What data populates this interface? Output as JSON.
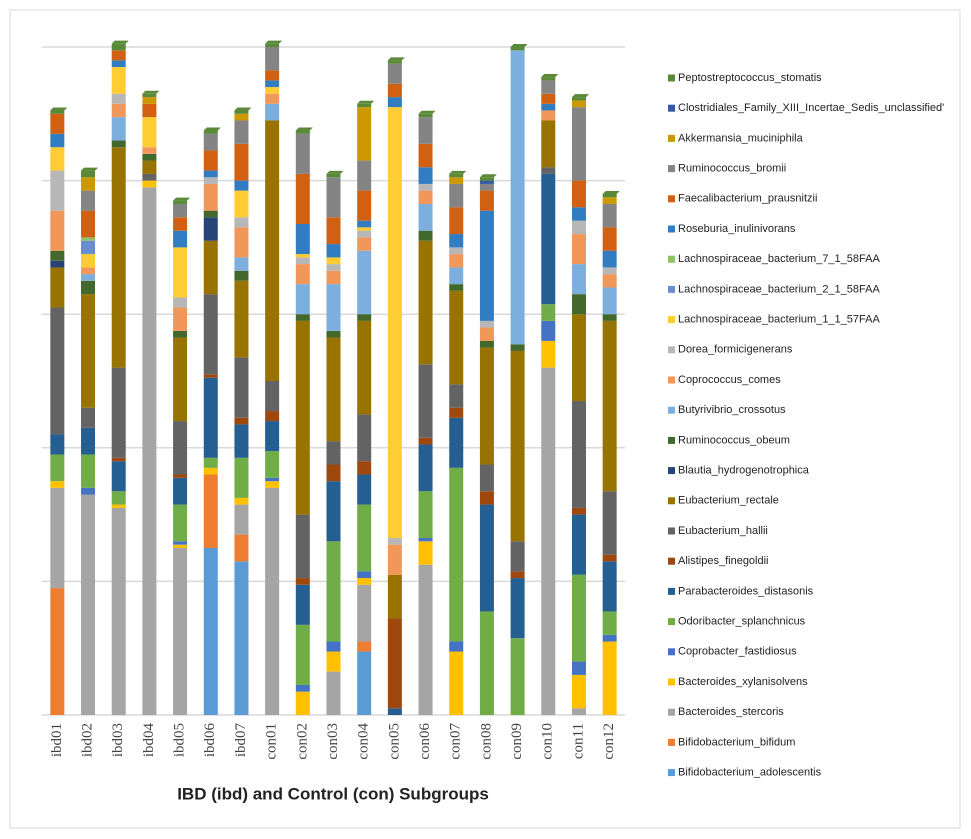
{
  "chart_data": {
    "type": "stacked_bar",
    "x_label": "IBD (ibd) and Control (con) Subgroups",
    "categories": [
      "ibd01",
      "ibd02",
      "ibd03",
      "ibd04",
      "ibd05",
      "ibd06",
      "ibd07",
      "con01",
      "con02",
      "con03",
      "con04",
      "con05",
      "con06",
      "con07",
      "con08",
      "con09",
      "con10",
      "con11",
      "con12"
    ],
    "ylim": [
      0,
      100
    ],
    "yticks": [
      0,
      20,
      40,
      60,
      80,
      100
    ],
    "grid": true,
    "legend": "right",
    "series": [
      {
        "name": "Bifidobacterium_adolescentis",
        "color": "#5b9bd5",
        "values": [
          0,
          0,
          0,
          0,
          0,
          25,
          23,
          0,
          0,
          0,
          9.5,
          0,
          0,
          0,
          0,
          0,
          0,
          0,
          0
        ]
      },
      {
        "name": "Bifidobacterium_bifidum",
        "color": "#ed7d31",
        "values": [
          19,
          0,
          0,
          0,
          0,
          11,
          4,
          0,
          0,
          0,
          1.5,
          0,
          0,
          0,
          0,
          0,
          0,
          0,
          0
        ]
      },
      {
        "name": "Bacteroides_stercoris",
        "color": "#a5a5a5",
        "values": [
          15,
          33,
          31,
          79,
          25,
          0,
          4.5,
          34,
          0,
          6.5,
          8.5,
          0,
          22.5,
          0,
          0,
          0,
          52,
          1,
          0
        ]
      },
      {
        "name": "Bacteroides_xylanisolvens",
        "color": "#ffc000",
        "values": [
          1,
          0,
          0.5,
          1,
          0.5,
          1,
          1,
          1,
          3.5,
          3,
          1,
          0,
          3.5,
          9.5,
          0,
          0,
          4,
          5,
          11
        ]
      },
      {
        "name": "Coprobacter_fastidiosus",
        "color": "#4472c4",
        "values": [
          0,
          1,
          0,
          0,
          0.5,
          0,
          0,
          0.5,
          1,
          1.5,
          1,
          0,
          0.5,
          1.5,
          0,
          0,
          3,
          2,
          1
        ]
      },
      {
        "name": "Odoribacter_splanchnicus",
        "color": "#70ad47",
        "values": [
          4,
          5,
          2,
          0,
          5.5,
          1.5,
          6,
          4,
          9,
          15,
          10,
          0,
          7,
          26,
          15.5,
          11.5,
          2.5,
          13,
          3.5
        ]
      },
      {
        "name": "Parabacteroides_distasonis",
        "color": "#255e91",
        "values": [
          3,
          4,
          4.5,
          0,
          4,
          12,
          5,
          4.5,
          6,
          9,
          4.5,
          1,
          7,
          7.5,
          16,
          9,
          19.5,
          9,
          7.5
        ]
      },
      {
        "name": "Alistipes_finegoldii",
        "color": "#9e480e",
        "values": [
          0,
          0,
          0.5,
          0,
          0.5,
          0.5,
          1,
          1.5,
          1,
          2.5,
          2,
          13.5,
          1,
          1.5,
          2,
          1,
          0,
          1,
          1
        ]
      },
      {
        "name": "Eubacterium_hallii",
        "color": "#636363",
        "values": [
          19,
          3,
          13.5,
          1,
          8,
          12,
          9,
          4.5,
          9.5,
          3.5,
          7,
          0,
          11,
          3.5,
          4,
          4.5,
          1,
          16,
          9.5
        ]
      },
      {
        "name": "Eubacterium_rectale",
        "color": "#997300",
        "values": [
          6,
          17,
          33,
          2,
          12.5,
          8,
          11.5,
          39,
          29,
          15.5,
          14,
          6.5,
          18.5,
          14,
          17.5,
          28.5,
          7,
          13,
          25.5
        ]
      },
      {
        "name": "Blautia_hydrogenotrophica",
        "color": "#264478",
        "values": [
          1,
          0,
          0,
          0,
          0,
          3.5,
          0,
          0,
          0,
          0,
          0,
          0,
          0,
          0,
          0,
          0,
          0,
          0,
          0
        ]
      },
      {
        "name": "Ruminococcus_obeum",
        "color": "#43682b",
        "values": [
          1.5,
          2,
          1,
          1,
          1,
          1,
          1.5,
          0,
          1,
          1,
          1,
          0,
          1.5,
          1,
          1,
          1,
          0,
          3,
          1
        ]
      },
      {
        "name": "Butyrivibrio_crossotus",
        "color": "#7cafdd",
        "values": [
          0,
          1,
          3.5,
          0,
          0,
          0,
          2,
          2.5,
          4.5,
          7,
          9.5,
          0,
          4,
          2.5,
          0,
          44,
          0,
          4.5,
          4
        ]
      },
      {
        "name": "Coprococcus_comes",
        "color": "#f1975a",
        "values": [
          6,
          1,
          2,
          1,
          3.5,
          4,
          4.5,
          1.5,
          3,
          2,
          2,
          4.5,
          2,
          2,
          2,
          0,
          1.5,
          4.5,
          2
        ]
      },
      {
        "name": "Dorea_formicigenerans",
        "color": "#b7b7b7",
        "values": [
          6,
          0,
          1.5,
          0,
          1.5,
          1,
          1.5,
          0,
          1,
          1,
          1,
          1,
          1,
          1,
          1,
          0,
          0,
          2,
          1
        ]
      },
      {
        "name": "Lachnospiraceae_bacterium_1_1_57FAA",
        "color": "#ffcd33",
        "values": [
          3.5,
          2,
          4,
          4.5,
          7.5,
          0,
          4,
          1,
          0.5,
          1,
          0.5,
          64.5,
          0,
          0,
          0,
          0,
          0,
          0,
          0
        ]
      },
      {
        "name": "Lachnospiraceae_bacterium_2_1_58FAA",
        "color": "#698ed0",
        "values": [
          0,
          2,
          0,
          0,
          0,
          0,
          0,
          0,
          0,
          0,
          0,
          0,
          0,
          0,
          0,
          0,
          0,
          0,
          0
        ]
      },
      {
        "name": "Lachnospiraceae_bacterium_7_1_58FAA",
        "color": "#8cc168",
        "values": [
          0,
          0.5,
          0,
          0,
          0,
          0,
          0,
          0,
          0,
          0,
          0,
          0,
          0,
          0,
          0,
          0,
          0,
          0,
          0
        ]
      },
      {
        "name": "Roseburia_inulinivorans",
        "color": "#327dc2",
        "values": [
          2,
          0,
          1,
          0,
          2.5,
          1,
          1.5,
          1,
          4.5,
          2,
          1,
          1.5,
          2.5,
          2,
          16.5,
          0,
          1,
          2,
          2.5
        ]
      },
      {
        "name": "Faecalibacterium_prausnitzii",
        "color": "#d26012",
        "values": [
          3,
          4,
          1.5,
          2,
          2,
          3,
          5.5,
          1.5,
          7.5,
          4,
          4.5,
          2,
          3.5,
          4,
          3,
          0,
          1.5,
          4,
          3.5
        ]
      },
      {
        "name": "Ruminococcus_bromii",
        "color": "#848484",
        "values": [
          0,
          3,
          0,
          0,
          2,
          2.5,
          3.5,
          3.5,
          6,
          6,
          4.5,
          3,
          4,
          3.5,
          1,
          0,
          2,
          11,
          3.5
        ]
      },
      {
        "name": "Akkermansia_muciniphila",
        "color": "#cc9a00",
        "values": [
          0,
          2,
          0,
          1,
          0,
          0,
          1,
          0,
          0,
          0,
          8,
          0,
          0,
          1,
          0,
          0,
          0,
          1,
          1
        ]
      },
      {
        "name": "Clostridiales_Family_XIII_Incertae_Sedis_unclassified'",
        "color": "#335aa1",
        "values": [
          0,
          0,
          0,
          0,
          0,
          0,
          0,
          0,
          0,
          0,
          0,
          0,
          0,
          0,
          0.5,
          0,
          0,
          0,
          0
        ]
      },
      {
        "name": "Peptostreptococcus_stomatis",
        "color": "#5a8a39",
        "values": [
          0.5,
          1,
          1,
          0.5,
          0.5,
          0.5,
          0.5,
          0.5,
          0.5,
          0.5,
          0.5,
          0.5,
          0.5,
          0.5,
          0.5,
          0.5,
          0.5,
          0.5,
          0.5
        ]
      }
    ]
  }
}
